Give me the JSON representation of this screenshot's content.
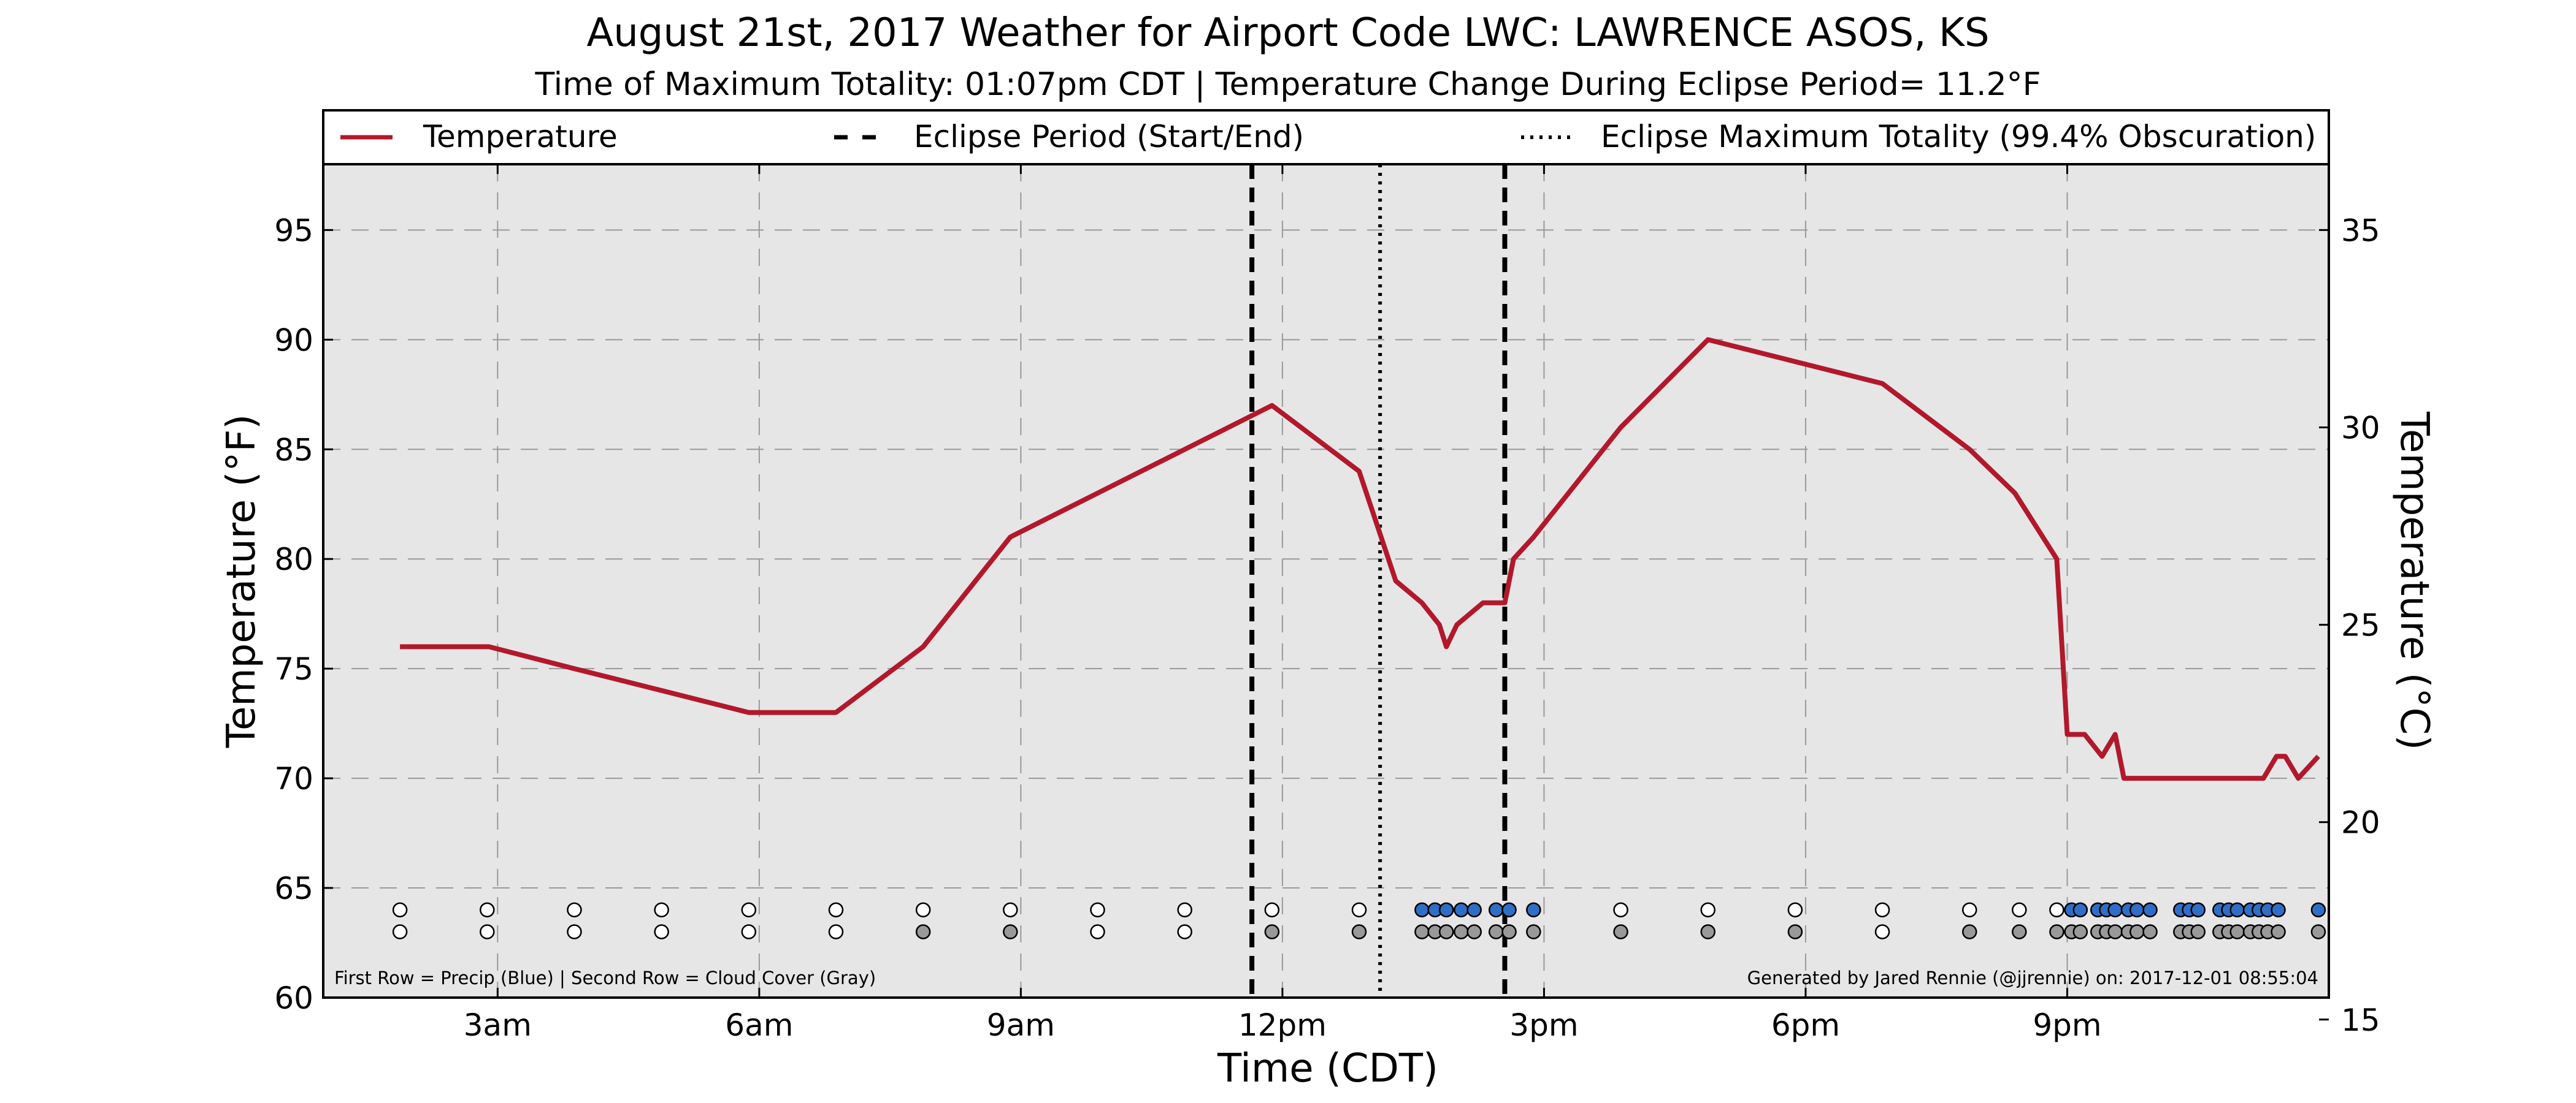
{
  "chart_data": {
    "type": "line",
    "title": "August 21st, 2017 Weather for Airport Code LWC: LAWRENCE ASOS, KS",
    "subtitle": "Time of Maximum Totality: 01:07pm CDT | Temperature Change During Eclipse Period= 11.2°F",
    "xlabel": "Time (CDT)",
    "ylabel_left": "Temperature (°F)",
    "ylabel_right": "Temperature (°C)",
    "xlim": [
      1.0,
      24.0
    ],
    "ylim": [
      60,
      98
    ],
    "x_ticks": [
      {
        "x": 3,
        "label": "3am"
      },
      {
        "x": 6,
        "label": "6am"
      },
      {
        "x": 9,
        "label": "9am"
      },
      {
        "x": 12,
        "label": "12pm"
      },
      {
        "x": 15,
        "label": "3pm"
      },
      {
        "x": 18,
        "label": "6pm"
      },
      {
        "x": 21,
        "label": "9pm"
      }
    ],
    "y_ticks_left": [
      60,
      65,
      70,
      75,
      80,
      85,
      90,
      95
    ],
    "y_ticks_right": [
      15,
      20,
      25,
      30,
      35
    ],
    "grid": true,
    "legend_position": "top",
    "legend": [
      {
        "label": "Temperature",
        "style": "solid",
        "color": "#b2182b"
      },
      {
        "label": "Eclipse Period (Start/End)",
        "style": "dashed",
        "color": "#000000"
      },
      {
        "label": "Eclipse Maximum Totality (99.4% Obscuration)",
        "style": "dotted",
        "color": "#000000"
      }
    ],
    "series": [
      {
        "name": "Temperature",
        "color": "#b2182b",
        "x": [
          1.88,
          2.9,
          3.88,
          4.88,
          5.88,
          6.88,
          7.88,
          8.88,
          9.88,
          10.88,
          11.88,
          12.88,
          13.3,
          13.6,
          13.8,
          13.88,
          14.0,
          14.3,
          14.55,
          14.65,
          14.88,
          15.88,
          16.88,
          17.88,
          18.88,
          19.88,
          20.4,
          20.88,
          21.0,
          21.2,
          21.4,
          21.55,
          21.65,
          22.0,
          22.5,
          22.88,
          23.0,
          23.25,
          23.4,
          23.5,
          23.65,
          23.88
        ],
        "y": [
          76,
          76,
          75,
          74,
          73,
          73,
          76,
          81,
          83,
          85,
          87,
          84,
          79,
          78,
          77,
          76,
          77,
          78,
          78,
          80,
          81,
          86,
          90,
          89,
          88,
          85,
          83,
          80,
          72,
          72,
          71,
          72,
          70,
          70,
          70,
          70,
          70,
          70,
          71,
          71,
          70,
          71
        ]
      }
    ],
    "eclipse_start_x": 11.65,
    "eclipse_end_x": 14.55,
    "eclipse_max_x": 13.12,
    "precip_row_y": 64,
    "cloud_row_y": 63,
    "precip_markers": [
      {
        "x": 1.88,
        "fill": "#ffffff"
      },
      {
        "x": 2.88,
        "fill": "#ffffff"
      },
      {
        "x": 3.88,
        "fill": "#ffffff"
      },
      {
        "x": 4.88,
        "fill": "#ffffff"
      },
      {
        "x": 5.88,
        "fill": "#ffffff"
      },
      {
        "x": 6.88,
        "fill": "#ffffff"
      },
      {
        "x": 7.88,
        "fill": "#ffffff"
      },
      {
        "x": 8.88,
        "fill": "#ffffff"
      },
      {
        "x": 9.88,
        "fill": "#ffffff"
      },
      {
        "x": 10.88,
        "fill": "#ffffff"
      },
      {
        "x": 11.88,
        "fill": "#ffffff"
      },
      {
        "x": 12.88,
        "fill": "#ffffff"
      },
      {
        "x": 13.6,
        "fill": "#2f6ec6"
      },
      {
        "x": 13.75,
        "fill": "#2f6ec6"
      },
      {
        "x": 13.88,
        "fill": "#2f6ec6"
      },
      {
        "x": 14.05,
        "fill": "#2f6ec6"
      },
      {
        "x": 14.2,
        "fill": "#2f6ec6"
      },
      {
        "x": 14.45,
        "fill": "#2f6ec6"
      },
      {
        "x": 14.6,
        "fill": "#2f6ec6"
      },
      {
        "x": 14.88,
        "fill": "#2f6ec6"
      },
      {
        "x": 15.88,
        "fill": "#ffffff"
      },
      {
        "x": 16.88,
        "fill": "#ffffff"
      },
      {
        "x": 17.88,
        "fill": "#ffffff"
      },
      {
        "x": 18.88,
        "fill": "#ffffff"
      },
      {
        "x": 19.88,
        "fill": "#ffffff"
      },
      {
        "x": 20.45,
        "fill": "#ffffff"
      },
      {
        "x": 20.88,
        "fill": "#ffffff"
      },
      {
        "x": 21.05,
        "fill": "#2f6ec6"
      },
      {
        "x": 21.15,
        "fill": "#2f6ec6"
      },
      {
        "x": 21.35,
        "fill": "#2f6ec6"
      },
      {
        "x": 21.45,
        "fill": "#2f6ec6"
      },
      {
        "x": 21.55,
        "fill": "#2f6ec6"
      },
      {
        "x": 21.7,
        "fill": "#2f6ec6"
      },
      {
        "x": 21.8,
        "fill": "#2f6ec6"
      },
      {
        "x": 21.95,
        "fill": "#2f6ec6"
      },
      {
        "x": 22.3,
        "fill": "#2f6ec6"
      },
      {
        "x": 22.4,
        "fill": "#2f6ec6"
      },
      {
        "x": 22.5,
        "fill": "#2f6ec6"
      },
      {
        "x": 22.75,
        "fill": "#2f6ec6"
      },
      {
        "x": 22.85,
        "fill": "#2f6ec6"
      },
      {
        "x": 22.95,
        "fill": "#2f6ec6"
      },
      {
        "x": 23.1,
        "fill": "#2f6ec6"
      },
      {
        "x": 23.2,
        "fill": "#2f6ec6"
      },
      {
        "x": 23.3,
        "fill": "#2f6ec6"
      },
      {
        "x": 23.42,
        "fill": "#2f6ec6"
      },
      {
        "x": 23.88,
        "fill": "#2f6ec6"
      }
    ],
    "cloud_markers": [
      {
        "x": 1.88,
        "fill": "#ffffff"
      },
      {
        "x": 2.88,
        "fill": "#ffffff"
      },
      {
        "x": 3.88,
        "fill": "#ffffff"
      },
      {
        "x": 4.88,
        "fill": "#ffffff"
      },
      {
        "x": 5.88,
        "fill": "#ffffff"
      },
      {
        "x": 6.88,
        "fill": "#ffffff"
      },
      {
        "x": 7.88,
        "fill": "#999999"
      },
      {
        "x": 8.88,
        "fill": "#999999"
      },
      {
        "x": 9.88,
        "fill": "#ffffff"
      },
      {
        "x": 10.88,
        "fill": "#ffffff"
      },
      {
        "x": 11.88,
        "fill": "#999999"
      },
      {
        "x": 12.88,
        "fill": "#999999"
      },
      {
        "x": 13.6,
        "fill": "#999999"
      },
      {
        "x": 13.75,
        "fill": "#999999"
      },
      {
        "x": 13.88,
        "fill": "#999999"
      },
      {
        "x": 14.05,
        "fill": "#999999"
      },
      {
        "x": 14.2,
        "fill": "#999999"
      },
      {
        "x": 14.45,
        "fill": "#999999"
      },
      {
        "x": 14.6,
        "fill": "#999999"
      },
      {
        "x": 14.88,
        "fill": "#999999"
      },
      {
        "x": 15.88,
        "fill": "#999999"
      },
      {
        "x": 16.88,
        "fill": "#999999"
      },
      {
        "x": 17.88,
        "fill": "#999999"
      },
      {
        "x": 18.88,
        "fill": "#ffffff"
      },
      {
        "x": 19.88,
        "fill": "#999999"
      },
      {
        "x": 20.45,
        "fill": "#999999"
      },
      {
        "x": 20.88,
        "fill": "#999999"
      },
      {
        "x": 21.05,
        "fill": "#999999"
      },
      {
        "x": 21.15,
        "fill": "#999999"
      },
      {
        "x": 21.35,
        "fill": "#999999"
      },
      {
        "x": 21.45,
        "fill": "#999999"
      },
      {
        "x": 21.55,
        "fill": "#999999"
      },
      {
        "x": 21.7,
        "fill": "#999999"
      },
      {
        "x": 21.8,
        "fill": "#999999"
      },
      {
        "x": 21.95,
        "fill": "#999999"
      },
      {
        "x": 22.3,
        "fill": "#999999"
      },
      {
        "x": 22.4,
        "fill": "#999999"
      },
      {
        "x": 22.5,
        "fill": "#999999"
      },
      {
        "x": 22.75,
        "fill": "#999999"
      },
      {
        "x": 22.85,
        "fill": "#999999"
      },
      {
        "x": 22.95,
        "fill": "#999999"
      },
      {
        "x": 23.1,
        "fill": "#999999"
      },
      {
        "x": 23.2,
        "fill": "#999999"
      },
      {
        "x": 23.3,
        "fill": "#999999"
      },
      {
        "x": 23.42,
        "fill": "#999999"
      },
      {
        "x": 23.88,
        "fill": "#999999"
      }
    ],
    "footnote_left": "First Row = Precip (Blue) | Second Row = Cloud Cover (Gray)",
    "footnote_right": "Generated by Jared Rennie (@jjrennie) on: 2017-12-01 08:55:04"
  }
}
